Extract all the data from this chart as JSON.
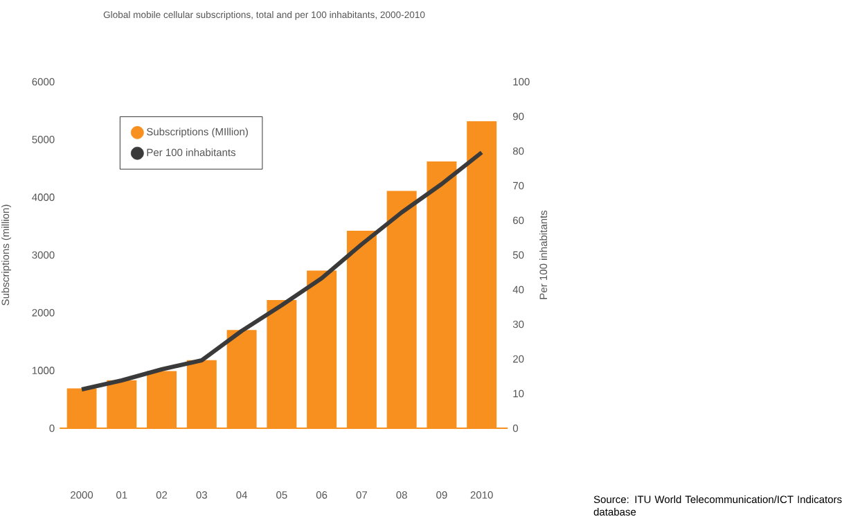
{
  "chart_data": {
    "type": "bar",
    "title": "Global mobile cellular subscriptions, total and per 100 inhabitants, 2000-2010",
    "ylabel": "Subscriptions (million)",
    "y2label": "Per 100 inhabitants",
    "categories": [
      "2000",
      "01",
      "02",
      "03",
      "04",
      "05",
      "06",
      "07",
      "08",
      "09",
      "2010"
    ],
    "series": [
      {
        "name": "Subscriptions (MIllion)",
        "color": "#f7901e",
        "values": [
          690,
          830,
          990,
          1180,
          1700,
          2220,
          2730,
          3420,
          4110,
          4620,
          5320
        ]
      },
      {
        "name": "Per 100 inhabitants",
        "type": "line",
        "axis": "y2",
        "color": "#3a3a3a",
        "values": [
          11.2,
          13.8,
          17.0,
          19.6,
          28.1,
          35.5,
          43.3,
          53.1,
          62.3,
          70.5,
          79.6
        ]
      }
    ],
    "ylim": [
      0,
      6000
    ],
    "yticks": [
      0,
      1000,
      2000,
      3000,
      4000,
      5000,
      6000
    ],
    "y2lim": [
      0,
      100
    ],
    "y2ticks": [
      0,
      10,
      20,
      30,
      40,
      50,
      60,
      70,
      80,
      90,
      100
    ],
    "legend": "top left",
    "annotations": [
      "Source: ITU World Telecommunication/ICT Indicators database"
    ]
  }
}
